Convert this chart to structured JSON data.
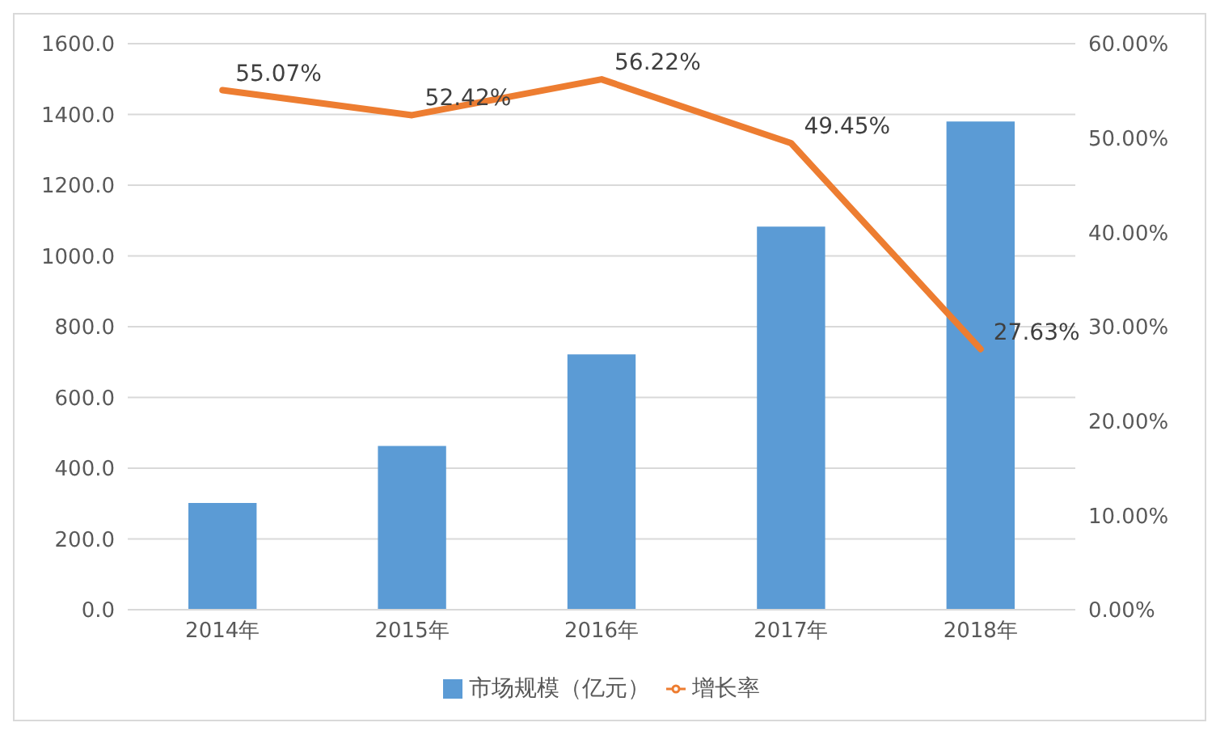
{
  "chart_data": {
    "type": "bar",
    "categories": [
      "2014年",
      "2015年",
      "2016年",
      "2017年",
      "2018年"
    ],
    "series": [
      {
        "name": "市场规模（亿元）",
        "color": "#5b9bd5",
        "values": [
          302,
          463,
          722,
          1083,
          1380
        ]
      },
      {
        "name": "增长率",
        "type": "line",
        "axis": "y2",
        "color": "#ed7d31",
        "values": [
          55.07,
          52.42,
          56.22,
          49.45,
          27.63
        ],
        "value_labels": [
          "55.07%",
          "52.42%",
          "56.22%",
          "49.45%",
          "27.63%"
        ]
      }
    ],
    "ylim": [
      0,
      1600
    ],
    "yticks": [
      {
        "value": 0,
        "label": "0.0"
      },
      {
        "value": 200,
        "label": "200.0"
      },
      {
        "value": 400,
        "label": "400.0"
      },
      {
        "value": 600,
        "label": "600.0"
      },
      {
        "value": 800,
        "label": "800.0"
      },
      {
        "value": 1000,
        "label": "1000.0"
      },
      {
        "value": 1200,
        "label": "1200.0"
      },
      {
        "value": 1400,
        "label": "1400.0"
      },
      {
        "value": 1600,
        "label": "1600.0"
      }
    ],
    "y2lim": [
      0,
      60
    ],
    "y2ticks": [
      {
        "value": 0,
        "label": "0.00%"
      },
      {
        "value": 10,
        "label": "10.00%"
      },
      {
        "value": 20,
        "label": "20.00%"
      },
      {
        "value": 30,
        "label": "30.00%"
      },
      {
        "value": 40,
        "label": "40.00%"
      },
      {
        "value": 50,
        "label": "50.00%"
      },
      {
        "value": 60,
        "label": "60.00%"
      }
    ],
    "grid": "y",
    "legend": "bottom",
    "marker": "none",
    "line_style": "solid"
  }
}
